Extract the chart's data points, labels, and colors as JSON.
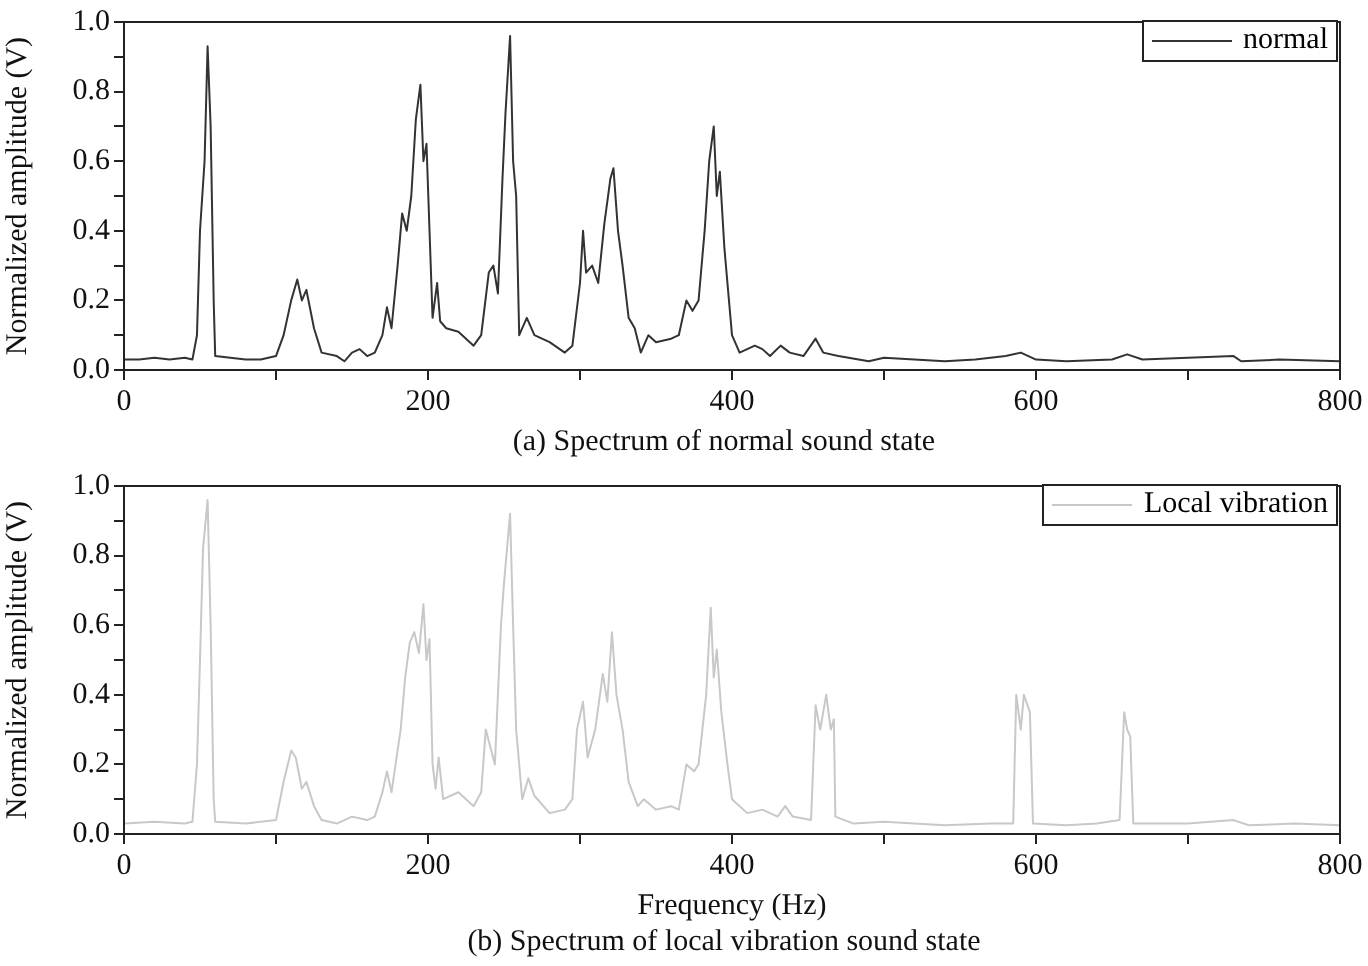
{
  "chart_data": [
    {
      "type": "line",
      "ylabel": "Normalized amplitude (V)",
      "xlim": [
        0,
        800
      ],
      "xticks": [
        0,
        {
          "value": 100,
          "label": null
        },
        200,
        {
          "value": 300,
          "label": null
        },
        400,
        {
          "value": 500,
          "label": null
        },
        600,
        {
          "value": 700,
          "label": null
        },
        800
      ],
      "ylim": [
        0,
        1
      ],
      "yticks": [
        {
          "value": 0,
          "label": "0.0"
        },
        {
          "value": 0.1,
          "label": null
        },
        0.2,
        {
          "value": 0.3,
          "label": null
        },
        0.4,
        {
          "value": 0.5,
          "label": null
        },
        0.6,
        {
          "value": 0.7,
          "label": null
        },
        0.8,
        {
          "value": 0.9,
          "label": null
        },
        {
          "value": 1,
          "label": "1.0"
        }
      ],
      "grid": false,
      "legend": "top right",
      "marker": "none",
      "annotations": [
        "(a) Spectrum of normal sound state"
      ],
      "x": [
        0,
        10,
        20,
        30,
        40,
        45,
        48,
        50,
        53,
        55,
        57,
        59,
        60,
        70,
        80,
        90,
        100,
        105,
        110,
        114,
        117,
        120,
        125,
        130,
        140,
        145,
        150,
        155,
        160,
        165,
        170,
        173,
        176,
        180,
        183,
        186,
        189,
        192,
        195,
        197,
        199,
        201,
        203,
        206,
        208,
        212,
        220,
        230,
        235,
        240,
        243,
        246,
        249,
        251,
        254,
        256,
        258,
        260,
        265,
        270,
        280,
        290,
        295,
        300,
        302,
        304,
        308,
        312,
        316,
        320,
        322,
        325,
        328,
        332,
        336,
        340,
        345,
        350,
        360,
        365,
        370,
        374,
        378,
        382,
        385,
        388,
        390,
        392,
        395,
        398,
        400,
        405,
        415,
        420,
        425,
        432,
        438,
        447,
        455,
        460,
        470,
        490,
        500,
        520,
        540,
        560,
        580,
        590,
        600,
        620,
        650,
        660,
        670,
        700,
        730,
        735,
        760,
        800
      ],
      "series": [
        {
          "name": "normal",
          "color": "#333333",
          "values": [
            0.03,
            0.03,
            0.035,
            0.03,
            0.035,
            0.03,
            0.1,
            0.4,
            0.6,
            0.93,
            0.7,
            0.2,
            0.04,
            0.035,
            0.03,
            0.03,
            0.04,
            0.1,
            0.2,
            0.26,
            0.2,
            0.23,
            0.12,
            0.05,
            0.04,
            0.025,
            0.05,
            0.06,
            0.04,
            0.05,
            0.1,
            0.18,
            0.12,
            0.3,
            0.45,
            0.4,
            0.5,
            0.72,
            0.82,
            0.6,
            0.65,
            0.4,
            0.15,
            0.25,
            0.14,
            0.12,
            0.11,
            0.07,
            0.1,
            0.28,
            0.3,
            0.22,
            0.55,
            0.74,
            0.96,
            0.6,
            0.5,
            0.1,
            0.15,
            0.1,
            0.08,
            0.05,
            0.07,
            0.25,
            0.4,
            0.28,
            0.3,
            0.25,
            0.42,
            0.55,
            0.58,
            0.4,
            0.3,
            0.15,
            0.12,
            0.05,
            0.1,
            0.08,
            0.09,
            0.1,
            0.2,
            0.17,
            0.2,
            0.4,
            0.6,
            0.7,
            0.5,
            0.57,
            0.35,
            0.2,
            0.1,
            0.05,
            0.07,
            0.06,
            0.04,
            0.07,
            0.05,
            0.04,
            0.09,
            0.05,
            0.04,
            0.025,
            0.035,
            0.03,
            0.025,
            0.03,
            0.04,
            0.05,
            0.03,
            0.025,
            0.03,
            0.045,
            0.03,
            0.035,
            0.04,
            0.025,
            0.03,
            0.025
          ]
        }
      ]
    },
    {
      "type": "line",
      "xlabel": "Frequency (Hz)",
      "ylabel": "Normalized amplitude (V)",
      "xlim": [
        0,
        800
      ],
      "xticks": [
        0,
        {
          "value": 100,
          "label": null
        },
        200,
        {
          "value": 300,
          "label": null
        },
        400,
        {
          "value": 500,
          "label": null
        },
        600,
        {
          "value": 700,
          "label": null
        },
        800
      ],
      "ylim": [
        0,
        1
      ],
      "yticks": [
        {
          "value": 0,
          "label": "0.0"
        },
        {
          "value": 0.1,
          "label": null
        },
        0.2,
        {
          "value": 0.3,
          "label": null
        },
        0.4,
        {
          "value": 0.5,
          "label": null
        },
        0.6,
        {
          "value": 0.7,
          "label": null
        },
        0.8,
        {
          "value": 0.9,
          "label": null
        },
        {
          "value": 1,
          "label": "1.0"
        }
      ],
      "grid": false,
      "legend": "top right",
      "marker": "none",
      "annotations": [
        "(b) Spectrum of local vibration sound state"
      ],
      "x": [
        0,
        20,
        40,
        45,
        48,
        50,
        52,
        55,
        57,
        59,
        60,
        80,
        100,
        105,
        110,
        113,
        117,
        120,
        125,
        130,
        140,
        150,
        160,
        165,
        170,
        173,
        176,
        182,
        185,
        188,
        191,
        194,
        197,
        199,
        201,
        203,
        205,
        207,
        210,
        220,
        230,
        235,
        238,
        241,
        244,
        248,
        250,
        254,
        256,
        258,
        262,
        266,
        270,
        280,
        290,
        295,
        298,
        302,
        305,
        310,
        315,
        318,
        321,
        324,
        328,
        332,
        338,
        342,
        350,
        360,
        365,
        370,
        375,
        378,
        383,
        386,
        388,
        390,
        393,
        397,
        400,
        410,
        420,
        430,
        435,
        440,
        452,
        455,
        458,
        462,
        465,
        467,
        468,
        480,
        500,
        520,
        540,
        570,
        585,
        587,
        590,
        592,
        596,
        598,
        620,
        640,
        655,
        658,
        660,
        662,
        664,
        680,
        700,
        730,
        740,
        770,
        800
      ],
      "series": [
        {
          "name": "Local vibration",
          "color": "#c8c8c8",
          "values": [
            0.03,
            0.035,
            0.03,
            0.035,
            0.2,
            0.5,
            0.82,
            0.96,
            0.6,
            0.1,
            0.035,
            0.03,
            0.04,
            0.15,
            0.24,
            0.22,
            0.13,
            0.15,
            0.08,
            0.04,
            0.03,
            0.05,
            0.04,
            0.05,
            0.12,
            0.18,
            0.12,
            0.3,
            0.45,
            0.55,
            0.58,
            0.52,
            0.66,
            0.5,
            0.56,
            0.2,
            0.13,
            0.22,
            0.1,
            0.12,
            0.08,
            0.12,
            0.3,
            0.25,
            0.2,
            0.6,
            0.72,
            0.92,
            0.6,
            0.3,
            0.1,
            0.16,
            0.11,
            0.06,
            0.07,
            0.1,
            0.3,
            0.38,
            0.22,
            0.3,
            0.46,
            0.38,
            0.58,
            0.4,
            0.3,
            0.15,
            0.08,
            0.1,
            0.07,
            0.08,
            0.07,
            0.2,
            0.18,
            0.2,
            0.4,
            0.65,
            0.45,
            0.53,
            0.35,
            0.2,
            0.1,
            0.06,
            0.07,
            0.05,
            0.08,
            0.05,
            0.04,
            0.37,
            0.3,
            0.4,
            0.3,
            0.33,
            0.05,
            0.03,
            0.035,
            0.03,
            0.025,
            0.03,
            0.03,
            0.4,
            0.3,
            0.4,
            0.35,
            0.03,
            0.025,
            0.03,
            0.04,
            0.35,
            0.3,
            0.28,
            0.03,
            0.03,
            0.03,
            0.04,
            0.025,
            0.03,
            0.025
          ]
        }
      ]
    }
  ]
}
